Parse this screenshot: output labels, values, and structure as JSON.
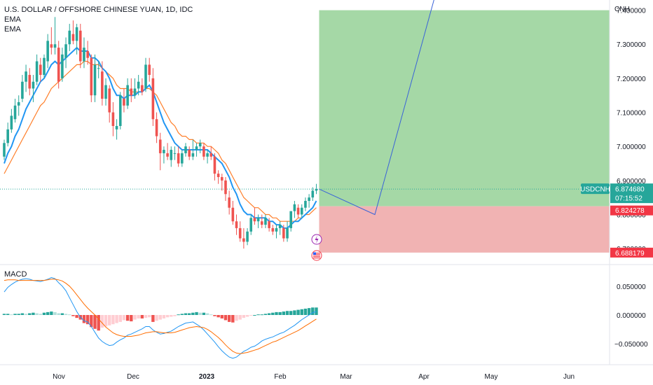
{
  "header": {
    "title": "U.S. DOLLAR / OFFSHORE CHINESE YUAN, 1D, IDC",
    "indicators": [
      "EMA",
      "EMA"
    ],
    "macd_label": "MACD"
  },
  "price_axis": {
    "currency": "CNH",
    "ticks": [
      "7.400000",
      "7.300000",
      "7.200000",
      "7.100000",
      "7.000000",
      "6.900000",
      "6.800000",
      "6.700000"
    ],
    "tick_values": [
      7.4,
      7.3,
      7.2,
      7.1,
      7.0,
      6.9,
      6.8,
      6.7
    ]
  },
  "macd_axis": {
    "ticks": [
      "0.050000",
      "0.000000",
      "−0.050000"
    ],
    "tick_values": [
      0.05,
      0.0,
      -0.05
    ]
  },
  "time_axis": {
    "labels": [
      "Nov",
      "Dec",
      "2023",
      "Feb",
      "Mar",
      "Apr",
      "May",
      "Jun"
    ]
  },
  "price_tags": {
    "symbol": "USDCNH",
    "last_price": "6.874680",
    "countdown": "07:15:52",
    "target_price": "6.824278",
    "stop_price": "6.688179"
  },
  "icons": {
    "flash": "flash-icon",
    "flag": "us-flag-icon"
  },
  "colors": {
    "up": "#26a69a",
    "down": "#ef5350",
    "ema_fast": "#2196f3",
    "ema_slow": "#ff7f2a",
    "macd_line": "#2196f3",
    "signal_line": "#ff6d00",
    "profit_zone": "#a5d8a6",
    "loss_zone": "#f1b3b3",
    "projection": "#3a63d8",
    "symbol_tag": "#26a69a",
    "stop_tag": "#f23645"
  },
  "chart_data": {
    "type": "candlestick",
    "symbol": "USDCNH",
    "interval": "1D",
    "series": [
      {
        "name": "USDCNH",
        "kind": "ohlc",
        "values": [
          [
            6.97,
            7.02,
            6.96,
            7.01
          ],
          [
            7.01,
            7.07,
            7.0,
            7.05
          ],
          [
            7.05,
            7.11,
            7.04,
            7.09
          ],
          [
            7.08,
            7.14,
            7.07,
            7.12
          ],
          [
            7.12,
            7.15,
            7.09,
            7.13
          ],
          [
            7.14,
            7.21,
            7.13,
            7.19
          ],
          [
            7.19,
            7.24,
            7.16,
            7.22
          ],
          [
            7.21,
            7.23,
            7.15,
            7.17
          ],
          [
            7.17,
            7.21,
            7.13,
            7.19
          ],
          [
            7.19,
            7.27,
            7.18,
            7.25
          ],
          [
            7.24,
            7.26,
            7.19,
            7.21
          ],
          [
            7.21,
            7.27,
            7.2,
            7.26
          ],
          [
            7.25,
            7.33,
            7.23,
            7.31
          ],
          [
            7.3,
            7.35,
            7.27,
            7.29
          ],
          [
            7.29,
            7.38,
            7.27,
            7.3
          ],
          [
            7.29,
            7.31,
            7.17,
            7.19
          ],
          [
            7.2,
            7.29,
            7.19,
            7.27
          ],
          [
            7.26,
            7.32,
            7.23,
            7.3
          ],
          [
            7.3,
            7.36,
            7.28,
            7.34
          ],
          [
            7.33,
            7.37,
            7.3,
            7.31
          ],
          [
            7.31,
            7.36,
            7.27,
            7.35
          ],
          [
            7.34,
            7.36,
            7.23,
            7.25
          ],
          [
            7.25,
            7.32,
            7.23,
            7.29
          ],
          [
            7.28,
            7.31,
            7.24,
            7.26
          ],
          [
            7.26,
            7.27,
            7.13,
            7.15
          ],
          [
            7.15,
            7.27,
            7.13,
            7.24
          ],
          [
            7.23,
            7.25,
            7.2,
            7.23
          ],
          [
            7.22,
            7.25,
            7.12,
            7.14
          ],
          [
            7.14,
            7.2,
            7.12,
            7.18
          ],
          [
            7.17,
            7.18,
            7.07,
            7.1
          ],
          [
            7.1,
            7.13,
            7.03,
            7.06
          ],
          [
            7.05,
            7.08,
            7.02,
            7.06
          ],
          [
            7.06,
            7.16,
            7.05,
            7.15
          ],
          [
            7.14,
            7.17,
            7.1,
            7.12
          ],
          [
            7.12,
            7.2,
            7.11,
            7.18
          ],
          [
            7.17,
            7.2,
            7.13,
            7.15
          ],
          [
            7.15,
            7.2,
            7.14,
            7.17
          ],
          [
            7.17,
            7.21,
            7.15,
            7.19
          ],
          [
            7.18,
            7.2,
            7.15,
            7.16
          ],
          [
            7.17,
            7.26,
            7.16,
            7.24
          ],
          [
            7.24,
            7.26,
            7.19,
            7.21
          ],
          [
            7.2,
            7.23,
            7.06,
            7.08
          ],
          [
            7.08,
            7.1,
            7.01,
            7.03
          ],
          [
            7.02,
            7.04,
            6.93,
            6.98
          ],
          [
            6.98,
            7.0,
            6.95,
            6.99
          ],
          [
            6.98,
            7.01,
            6.96,
            6.97
          ],
          [
            6.96,
            7.0,
            6.94,
            6.99
          ],
          [
            6.98,
            7.0,
            6.96,
            6.98
          ],
          [
            6.98,
            7.0,
            6.94,
            6.95
          ],
          [
            6.95,
            6.99,
            6.94,
            6.98
          ],
          [
            6.98,
            7.01,
            6.97,
            7.0
          ],
          [
            6.99,
            7.0,
            6.96,
            6.97
          ],
          [
            6.97,
            7.02,
            6.96,
            6.98
          ],
          [
            6.99,
            7.01,
            6.97,
            7.0
          ],
          [
            7.0,
            7.02,
            6.98,
            7.01
          ],
          [
            7.0,
            7.01,
            6.96,
            6.97
          ],
          [
            6.97,
            6.99,
            6.95,
            6.98
          ],
          [
            6.98,
            7.0,
            6.96,
            6.97
          ],
          [
            6.97,
            6.98,
            6.9,
            6.92
          ],
          [
            6.92,
            6.93,
            6.89,
            6.91
          ],
          [
            6.91,
            6.92,
            6.87,
            6.9
          ],
          [
            6.9,
            6.91,
            6.84,
            6.86
          ],
          [
            6.85,
            6.87,
            6.8,
            6.82
          ],
          [
            6.82,
            6.84,
            6.77,
            6.78
          ],
          [
            6.78,
            6.8,
            6.74,
            6.76
          ],
          [
            6.76,
            6.78,
            6.72,
            6.73
          ],
          [
            6.73,
            6.76,
            6.7,
            6.72
          ],
          [
            6.72,
            6.76,
            6.71,
            6.75
          ],
          [
            6.75,
            6.8,
            6.74,
            6.79
          ],
          [
            6.79,
            6.82,
            6.77,
            6.78
          ],
          [
            6.78,
            6.8,
            6.76,
            6.79
          ],
          [
            6.78,
            6.8,
            6.76,
            6.77
          ],
          [
            6.77,
            6.8,
            6.76,
            6.79
          ],
          [
            6.78,
            6.79,
            6.75,
            6.76
          ],
          [
            6.76,
            6.77,
            6.74,
            6.75
          ],
          [
            6.75,
            6.77,
            6.73,
            6.76
          ],
          [
            6.76,
            6.78,
            6.74,
            6.77
          ],
          [
            6.76,
            6.77,
            6.72,
            6.73
          ],
          [
            6.73,
            6.78,
            6.72,
            6.76
          ],
          [
            6.76,
            6.79,
            6.75,
            6.81
          ],
          [
            6.81,
            6.84,
            6.79,
            6.83
          ],
          [
            6.82,
            6.83,
            6.79,
            6.8
          ],
          [
            6.8,
            6.83,
            6.79,
            6.82
          ],
          [
            6.82,
            6.85,
            6.81,
            6.84
          ],
          [
            6.84,
            6.86,
            6.82,
            6.85
          ],
          [
            6.85,
            6.88,
            6.84,
            6.87
          ],
          [
            6.87,
            6.89,
            6.86,
            6.875
          ]
        ]
      },
      {
        "name": "EMA",
        "values": [
          6.95,
          6.98,
          7.0,
          7.03,
          7.05,
          7.08,
          7.11,
          7.13,
          7.15,
          7.17,
          7.19,
          7.2,
          7.22,
          7.24,
          7.25,
          7.24,
          7.25,
          7.26,
          7.27,
          7.28,
          7.29,
          7.28,
          7.28,
          7.28,
          7.26,
          7.26,
          7.25,
          7.23,
          7.22,
          7.2,
          7.17,
          7.15,
          7.15,
          7.14,
          7.15,
          7.15,
          7.15,
          7.16,
          7.16,
          7.17,
          7.18,
          7.16,
          7.13,
          7.1,
          7.07,
          7.05,
          7.03,
          7.01,
          7.0,
          6.99,
          6.99,
          6.99,
          6.99,
          6.99,
          6.99,
          6.99,
          6.99,
          6.98,
          6.97,
          6.96,
          6.95,
          6.93,
          6.91,
          6.88,
          6.86,
          6.83,
          6.81,
          6.8,
          6.8,
          6.79,
          6.79,
          6.79,
          6.79,
          6.78,
          6.78,
          6.77,
          6.77,
          6.76,
          6.76,
          6.77,
          6.78,
          6.78,
          6.79,
          6.8,
          6.81,
          6.82,
          6.84
        ]
      },
      {
        "name": "EMA",
        "values": [
          6.92,
          6.94,
          6.96,
          6.98,
          7.0,
          7.02,
          7.04,
          7.06,
          7.08,
          7.1,
          7.12,
          7.13,
          7.15,
          7.17,
          7.18,
          7.19,
          7.2,
          7.21,
          7.22,
          7.23,
          7.24,
          7.24,
          7.25,
          7.25,
          7.24,
          7.24,
          7.24,
          7.23,
          7.22,
          7.21,
          7.2,
          7.18,
          7.17,
          7.17,
          7.17,
          7.16,
          7.16,
          7.16,
          7.16,
          7.17,
          7.17,
          7.16,
          7.15,
          7.13,
          7.11,
          7.09,
          7.07,
          7.06,
          7.04,
          7.03,
          7.03,
          7.02,
          7.02,
          7.01,
          7.01,
          7.01,
          7.0,
          7.0,
          6.99,
          6.98,
          6.96,
          6.95,
          6.93,
          6.91,
          6.89,
          6.87,
          6.85,
          6.84,
          6.83,
          6.82,
          6.82,
          6.81,
          6.8,
          6.8,
          6.79,
          6.79,
          6.78,
          6.78,
          6.78,
          6.78,
          6.78,
          6.79,
          6.79,
          6.8,
          6.8,
          6.81,
          6.82
        ]
      }
    ],
    "macd": {
      "histogram": [
        0.002,
        0.002,
        0.001,
        0.002,
        0.002,
        0.003,
        0.002,
        0.003,
        0.004,
        0.003,
        0.002,
        0.004,
        0.005,
        0.006,
        0.005,
        0.003,
        0.003,
        0.002,
        0.001,
        -0.002,
        -0.005,
        -0.008,
        -0.014,
        -0.016,
        -0.021,
        -0.024,
        -0.027,
        -0.022,
        -0.02,
        -0.018,
        -0.016,
        -0.014,
        -0.012,
        -0.009,
        -0.01,
        -0.011,
        -0.008,
        -0.006,
        -0.006,
        -0.005,
        -0.004,
        -0.012,
        -0.01,
        -0.008,
        -0.006,
        -0.004,
        -0.003,
        -0.002,
        0.001,
        0.002,
        0.003,
        0.003,
        0.004,
        0.005,
        0.004,
        0.004,
        0.003,
        0.001,
        -0.002,
        -0.004,
        -0.006,
        -0.009,
        -0.012,
        -0.013,
        -0.01,
        -0.008,
        -0.005,
        -0.003,
        -0.001,
        0.0,
        0.001,
        0.001,
        0.002,
        0.003,
        0.004,
        0.005,
        0.005,
        0.006,
        0.007,
        0.007,
        0.008,
        0.009,
        0.01,
        0.011,
        0.012,
        0.013,
        0.013
      ],
      "macd": [
        0.04,
        0.048,
        0.053,
        0.057,
        0.06,
        0.062,
        0.063,
        0.062,
        0.06,
        0.059,
        0.058,
        0.06,
        0.062,
        0.065,
        0.063,
        0.056,
        0.05,
        0.042,
        0.03,
        0.018,
        0.006,
        -0.004,
        -0.01,
        -0.012,
        -0.02,
        -0.03,
        -0.04,
        -0.046,
        -0.05,
        -0.053,
        -0.052,
        -0.047,
        -0.043,
        -0.04,
        -0.035,
        -0.033,
        -0.03,
        -0.027,
        -0.024,
        -0.02,
        -0.02,
        -0.026,
        -0.03,
        -0.033,
        -0.032,
        -0.03,
        -0.028,
        -0.024,
        -0.02,
        -0.017,
        -0.014,
        -0.013,
        -0.012,
        -0.016,
        -0.02,
        -0.026,
        -0.033,
        -0.04,
        -0.047,
        -0.055,
        -0.062,
        -0.068,
        -0.073,
        -0.075,
        -0.073,
        -0.068,
        -0.063,
        -0.06,
        -0.056,
        -0.054,
        -0.05,
        -0.045,
        -0.042,
        -0.04,
        -0.038,
        -0.035,
        -0.032,
        -0.03,
        -0.026,
        -0.022,
        -0.018,
        -0.013,
        -0.008,
        -0.004,
        0.0,
        0.004,
        0.006
      ],
      "signal": [
        0.06,
        0.061,
        0.061,
        0.061,
        0.06,
        0.06,
        0.06,
        0.06,
        0.06,
        0.06,
        0.06,
        0.06,
        0.061,
        0.062,
        0.062,
        0.061,
        0.059,
        0.055,
        0.05,
        0.043,
        0.035,
        0.027,
        0.019,
        0.012,
        0.006,
        0.0,
        -0.007,
        -0.014,
        -0.021,
        -0.026,
        -0.031,
        -0.034,
        -0.036,
        -0.037,
        -0.037,
        -0.037,
        -0.036,
        -0.035,
        -0.033,
        -0.031,
        -0.03,
        -0.029,
        -0.029,
        -0.03,
        -0.031,
        -0.031,
        -0.031,
        -0.03,
        -0.028,
        -0.026,
        -0.024,
        -0.022,
        -0.021,
        -0.02,
        -0.021,
        -0.022,
        -0.025,
        -0.029,
        -0.034,
        -0.039,
        -0.045,
        -0.052,
        -0.058,
        -0.063,
        -0.066,
        -0.067,
        -0.066,
        -0.065,
        -0.063,
        -0.061,
        -0.059,
        -0.056,
        -0.053,
        -0.05,
        -0.047,
        -0.045,
        -0.042,
        -0.039,
        -0.036,
        -0.033,
        -0.03,
        -0.027,
        -0.023,
        -0.019,
        -0.015,
        -0.011,
        -0.007
      ]
    },
    "position": {
      "entry": 6.87468,
      "target": 6.824278,
      "stop": 6.688179,
      "upper_zone_top": 7.4
    },
    "projection_path": [
      6.87468,
      6.8,
      7.45
    ],
    "ylim": [
      6.655,
      7.43
    ],
    "macd_ylim": [
      -0.085,
      0.085
    ],
    "grid": false,
    "legend": "top-left"
  }
}
